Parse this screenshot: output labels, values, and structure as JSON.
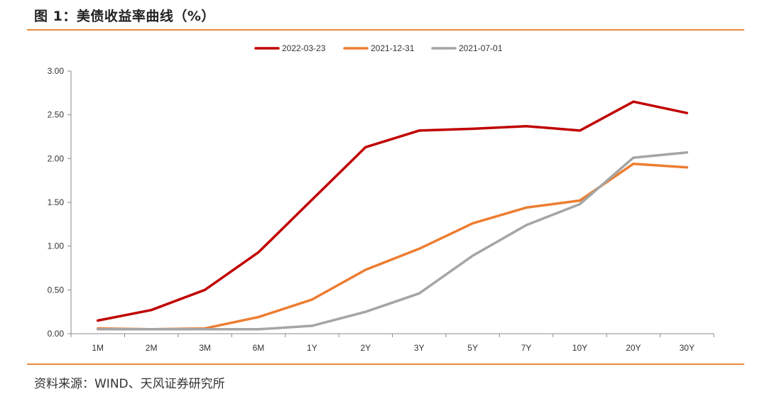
{
  "header": {
    "title": "图 1：美债收益率曲线（%）"
  },
  "footer": {
    "source": "资料来源：WIND、天风证券研究所"
  },
  "chart_data": {
    "type": "line",
    "title": "美债收益率曲线（%）",
    "xlabel": "",
    "ylabel": "",
    "categories": [
      "1M",
      "2M",
      "3M",
      "6M",
      "1Y",
      "2Y",
      "3Y",
      "5Y",
      "7Y",
      "10Y",
      "20Y",
      "30Y"
    ],
    "ylim": [
      0,
      3.0
    ],
    "yticks": [
      "0.00",
      "0.50",
      "1.00",
      "1.50",
      "2.00",
      "2.50",
      "3.00"
    ],
    "legend_position": "top-center",
    "grid": false,
    "series": [
      {
        "name": "2022-03-23",
        "color": "#c00000",
        "values": [
          0.15,
          0.27,
          0.5,
          0.93,
          1.53,
          2.13,
          2.32,
          2.34,
          2.37,
          2.32,
          2.65,
          2.52
        ]
      },
      {
        "name": "2021-12-31",
        "color": "#ed7d31",
        "values": [
          0.06,
          0.05,
          0.06,
          0.19,
          0.39,
          0.73,
          0.97,
          1.26,
          1.44,
          1.52,
          1.94,
          1.9
        ]
      },
      {
        "name": "2021-07-01",
        "color": "#a5a5a5",
        "values": [
          0.05,
          0.05,
          0.05,
          0.05,
          0.09,
          0.25,
          0.46,
          0.89,
          1.24,
          1.48,
          2.01,
          2.07
        ]
      }
    ]
  }
}
